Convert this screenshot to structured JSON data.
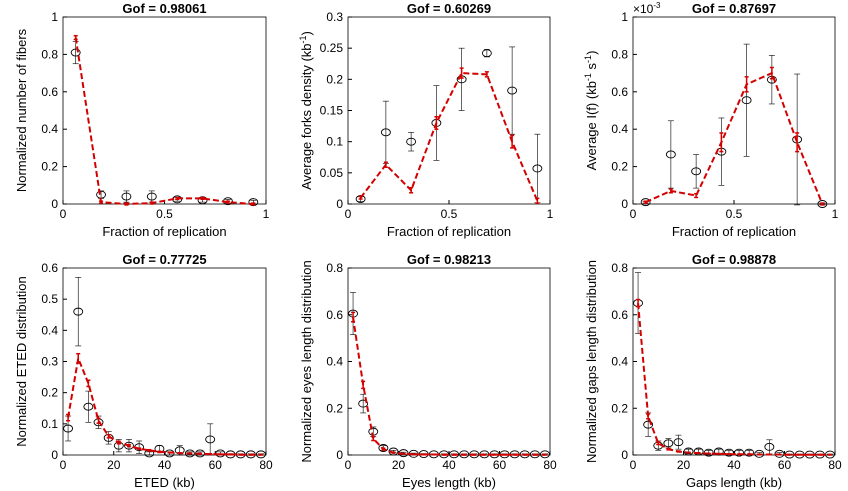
{
  "chart_data": [
    {
      "type": "line",
      "title": "Gof = 0.98061",
      "xlabel": "Fraction of replication",
      "ylabel": [
        "Normalized number of fibers"
      ],
      "x": [
        0.0625,
        0.1875,
        0.3125,
        0.4375,
        0.5625,
        0.6875,
        0.8125,
        0.9375
      ],
      "xlim": [
        0,
        1
      ],
      "xticks": [
        0,
        0.5,
        1
      ],
      "ylim": [
        0,
        1
      ],
      "yticks": [
        0,
        0.2,
        0.4,
        0.6,
        0.8,
        1
      ],
      "series": [
        {
          "color": "#000000",
          "marker": "circle",
          "linestyle": "none",
          "values": [
            0.81,
            0.05,
            0.04,
            0.04,
            0.025,
            0.02,
            0.015,
            0.01
          ],
          "errors": [
            0.06,
            0.02,
            0.03,
            0.03,
            0.01,
            0.01,
            0.01,
            0.01
          ]
        },
        {
          "color": "#d40000",
          "marker": "none",
          "linestyle": "dashed",
          "values": [
            0.89,
            0.01,
            0.0,
            0.005,
            0.03,
            0.03,
            0.01,
            0.0
          ],
          "errors": [
            0.01,
            0.005,
            0.005,
            0.005,
            0.005,
            0.005,
            0.005,
            0.005
          ]
        }
      ]
    },
    {
      "type": "line",
      "title": "Gof = 0.60269",
      "xlabel": "Fraction of replication",
      "ylabel": [
        "Average forks density (kb",
        "-1",
        ")"
      ],
      "x": [
        0.0625,
        0.1875,
        0.3125,
        0.4375,
        0.5625,
        0.6875,
        0.8125,
        0.9375
      ],
      "xlim": [
        0,
        1
      ],
      "xticks": [
        0,
        0.5,
        1
      ],
      "ylim": [
        0,
        0.3
      ],
      "yticks": [
        0,
        0.05,
        0.1,
        0.15,
        0.2,
        0.25,
        0.3
      ],
      "series": [
        {
          "color": "#000000",
          "marker": "circle",
          "linestyle": "none",
          "values": [
            0.008,
            0.115,
            0.1,
            0.13,
            0.2,
            0.242,
            0.182,
            0.057
          ],
          "errors": [
            0.004,
            0.05,
            0.015,
            0.06,
            0.05,
            0.006,
            0.07,
            0.055
          ]
        },
        {
          "color": "#d40000",
          "marker": "none",
          "linestyle": "dashed",
          "values": [
            0.01,
            0.063,
            0.022,
            0.13,
            0.21,
            0.208,
            0.1,
            0.005
          ],
          "errors": [
            0.002,
            0.004,
            0.004,
            0.01,
            0.008,
            0.004,
            0.01,
            0.004
          ]
        }
      ]
    },
    {
      "type": "line",
      "title": "Gof = 0.87697",
      "xlabel": "Fraction of replication",
      "ylabel": [
        "Average I(f) (kb",
        "-1",
        " s",
        "-1",
        ")"
      ],
      "y_multiplier": [
        "×10",
        "-3"
      ],
      "x": [
        0.0625,
        0.1875,
        0.3125,
        0.4375,
        0.5625,
        0.6875,
        0.8125,
        0.9375
      ],
      "xlim": [
        0,
        1
      ],
      "xticks": [
        0,
        0.5,
        1
      ],
      "ylim": [
        0,
        1
      ],
      "yticks": [
        0,
        0.2,
        0.4,
        0.6,
        0.8,
        1
      ],
      "series": [
        {
          "color": "#000000",
          "marker": "circle",
          "linestyle": "none",
          "values": [
            0.01,
            0.265,
            0.175,
            0.28,
            0.555,
            0.665,
            0.345,
            0.0
          ],
          "errors": [
            0.005,
            0.18,
            0.09,
            0.18,
            0.3,
            0.13,
            0.35,
            0.005
          ]
        },
        {
          "color": "#d40000",
          "marker": "none",
          "linestyle": "dashed",
          "values": [
            0.01,
            0.07,
            0.045,
            0.33,
            0.64,
            0.7,
            0.33,
            0.0
          ],
          "errors": [
            0.005,
            0.01,
            0.01,
            0.05,
            0.04,
            0.03,
            0.05,
            0.005
          ]
        }
      ]
    },
    {
      "type": "line",
      "title": "Gof = 0.77725",
      "xlabel": "ETED (kb)",
      "ylabel": [
        "Normalized ETED distribution"
      ],
      "x": [
        2,
        6,
        10,
        14,
        18,
        22,
        26,
        30,
        34,
        38,
        42,
        46,
        50,
        54,
        58,
        62,
        66,
        70,
        74,
        78
      ],
      "xlim": [
        0,
        80
      ],
      "xticks": [
        0,
        20,
        40,
        60,
        80
      ],
      "ylim": [
        0,
        0.6
      ],
      "yticks": [
        0,
        0.1,
        0.2,
        0.3,
        0.4,
        0.5,
        0.6
      ],
      "series": [
        {
          "color": "#000000",
          "marker": "circle",
          "linestyle": "none",
          "values": [
            0.085,
            0.46,
            0.155,
            0.105,
            0.055,
            0.03,
            0.03,
            0.025,
            0.005,
            0.02,
            0.005,
            0.015,
            0.005,
            0.005,
            0.05,
            0.005,
            0.002,
            0.002,
            0.002,
            0.002
          ],
          "errors": [
            0.04,
            0.11,
            0.05,
            0.02,
            0.02,
            0.02,
            0.02,
            0.02,
            0.005,
            0.01,
            0.005,
            0.015,
            0.005,
            0.005,
            0.05,
            0.005,
            0.002,
            0.002,
            0.002,
            0.002
          ]
        },
        {
          "color": "#d40000",
          "marker": "none",
          "linestyle": "dashed",
          "values": [
            0.12,
            0.31,
            0.23,
            0.11,
            0.06,
            0.04,
            0.03,
            0.02,
            0.015,
            0.01,
            0.008,
            0.006,
            0.005,
            0.004,
            0.003,
            0.002,
            0.002,
            0.001,
            0.001,
            0.001
          ],
          "errors": [
            0.01,
            0.015,
            0.01,
            0.008,
            0.005,
            0.004,
            0.003,
            0.002,
            0.002,
            0.002,
            0.001,
            0.001,
            0.001,
            0.001,
            0.001,
            0.001,
            0.001,
            0.001,
            0.001,
            0.001
          ]
        }
      ]
    },
    {
      "type": "line",
      "title": "Gof = 0.98213",
      "xlabel": "Eyes length (kb)",
      "ylabel": [
        "Normalized eyes length distribution"
      ],
      "x": [
        2,
        6,
        10,
        14,
        18,
        22,
        26,
        30,
        34,
        38,
        42,
        46,
        50,
        54,
        58,
        62,
        66,
        70,
        74,
        78
      ],
      "xlim": [
        0,
        80
      ],
      "xticks": [
        0,
        20,
        40,
        60,
        80
      ],
      "ylim": [
        0,
        0.8
      ],
      "yticks": [
        0,
        0.2,
        0.4,
        0.6,
        0.8
      ],
      "series": [
        {
          "color": "#000000",
          "marker": "circle",
          "linestyle": "none",
          "values": [
            0.605,
            0.22,
            0.1,
            0.03,
            0.015,
            0.008,
            0.005,
            0.004,
            0.003,
            0.003,
            0.003,
            0.003,
            0.003,
            0.003,
            0.003,
            0.003,
            0.003,
            0.003,
            0.003,
            0.003
          ],
          "errors": [
            0.09,
            0.04,
            0.02,
            0.01,
            0.005,
            0.004,
            0.003,
            0.002,
            0.002,
            0.002,
            0.002,
            0.002,
            0.002,
            0.002,
            0.002,
            0.002,
            0.002,
            0.002,
            0.002,
            0.002
          ]
        },
        {
          "color": "#d40000",
          "marker": "none",
          "linestyle": "dashed",
          "values": [
            0.59,
            0.3,
            0.07,
            0.025,
            0.01,
            0.005,
            0.003,
            0.002,
            0.002,
            0.001,
            0.001,
            0.001,
            0.001,
            0.001,
            0.001,
            0.001,
            0.001,
            0.001,
            0.001,
            0.001
          ],
          "errors": [
            0.02,
            0.015,
            0.008,
            0.004,
            0.002,
            0.001,
            0.001,
            0.001,
            0.001,
            0.001,
            0.001,
            0.001,
            0.001,
            0.001,
            0.001,
            0.001,
            0.001,
            0.001,
            0.001,
            0.001
          ]
        }
      ]
    },
    {
      "type": "line",
      "title": "Gof = 0.98878",
      "xlabel": "Gaps length (kb)",
      "ylabel": [
        "Normalized gaps length distribution"
      ],
      "x": [
        2,
        6,
        10,
        14,
        18,
        22,
        26,
        30,
        34,
        38,
        42,
        46,
        50,
        54,
        58,
        62,
        66,
        70,
        74,
        78
      ],
      "xlim": [
        0,
        80
      ],
      "xticks": [
        0,
        20,
        40,
        60,
        80
      ],
      "ylim": [
        0,
        0.8
      ],
      "yticks": [
        0,
        0.2,
        0.4,
        0.6,
        0.8
      ],
      "series": [
        {
          "color": "#000000",
          "marker": "circle",
          "linestyle": "none",
          "values": [
            0.65,
            0.13,
            0.04,
            0.05,
            0.055,
            0.015,
            0.015,
            0.01,
            0.015,
            0.01,
            0.01,
            0.01,
            0.005,
            0.035,
            0.005,
            0.002,
            0.002,
            0.002,
            0.002,
            0.002
          ],
          "errors": [
            0.13,
            0.05,
            0.02,
            0.02,
            0.03,
            0.01,
            0.01,
            0.01,
            0.01,
            0.01,
            0.01,
            0.01,
            0.005,
            0.03,
            0.005,
            0.002,
            0.002,
            0.002,
            0.002,
            0.002
          ]
        },
        {
          "color": "#d40000",
          "marker": "none",
          "linestyle": "dashed",
          "values": [
            0.65,
            0.165,
            0.05,
            0.025,
            0.015,
            0.01,
            0.008,
            0.006,
            0.005,
            0.004,
            0.003,
            0.003,
            0.002,
            0.002,
            0.002,
            0.001,
            0.001,
            0.001,
            0.001,
            0.001
          ],
          "errors": [
            0.015,
            0.01,
            0.005,
            0.003,
            0.002,
            0.001,
            0.001,
            0.001,
            0.001,
            0.001,
            0.001,
            0.001,
            0.001,
            0.001,
            0.001,
            0.001,
            0.001,
            0.001,
            0.001,
            0.001
          ]
        }
      ]
    }
  ]
}
